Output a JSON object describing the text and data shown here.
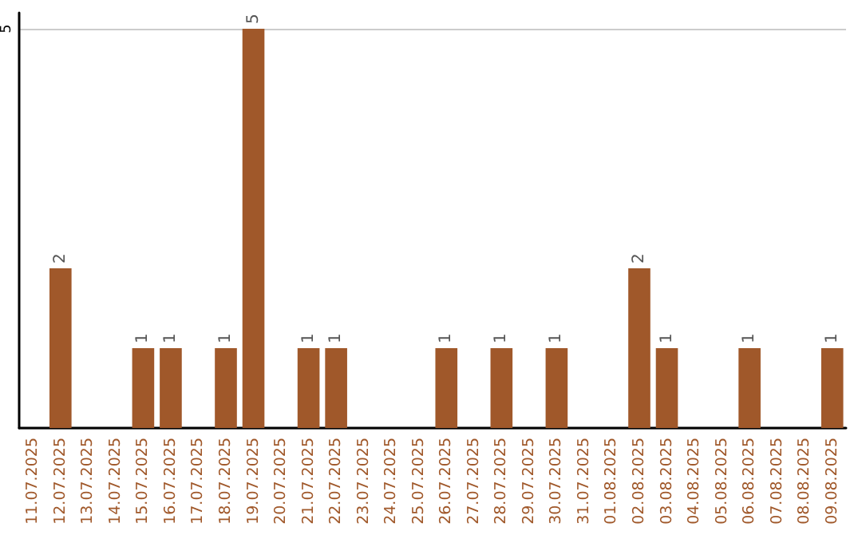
{
  "chart_data": {
    "type": "bar",
    "categories": [
      "11.07.2025",
      "12.07.2025",
      "13.07.2025",
      "14.07.2025",
      "15.07.2025",
      "16.07.2025",
      "17.07.2025",
      "18.07.2025",
      "19.07.2025",
      "20.07.2025",
      "21.07.2025",
      "22.07.2025",
      "23.07.2025",
      "24.07.2025",
      "25.07.2025",
      "26.07.2025",
      "27.07.2025",
      "28.07.2025",
      "29.07.2025",
      "30.07.2025",
      "31.07.2025",
      "01.08.2025",
      "02.08.2025",
      "03.08.2025",
      "04.08.2025",
      "05.08.2025",
      "06.08.2025",
      "07.08.2025",
      "08.08.2025",
      "09.08.2025"
    ],
    "values": [
      0,
      2,
      0,
      0,
      1,
      1,
      0,
      1,
      5,
      0,
      1,
      1,
      0,
      0,
      0,
      1,
      0,
      1,
      0,
      1,
      0,
      0,
      2,
      1,
      0,
      0,
      1,
      0,
      0,
      1
    ],
    "value_labels": [
      null,
      "2",
      null,
      null,
      "1",
      "1",
      null,
      "1",
      "5",
      null,
      "1",
      "1",
      null,
      null,
      null,
      "1",
      null,
      "1",
      null,
      "1",
      null,
      null,
      "2",
      "1",
      null,
      null,
      "1",
      null,
      null,
      "1"
    ],
    "color": "#a0582a",
    "ylim": [
      0,
      5.2
    ],
    "yticks": [
      {
        "value": 0,
        "label": null
      },
      5
    ],
    "grid": "y"
  }
}
